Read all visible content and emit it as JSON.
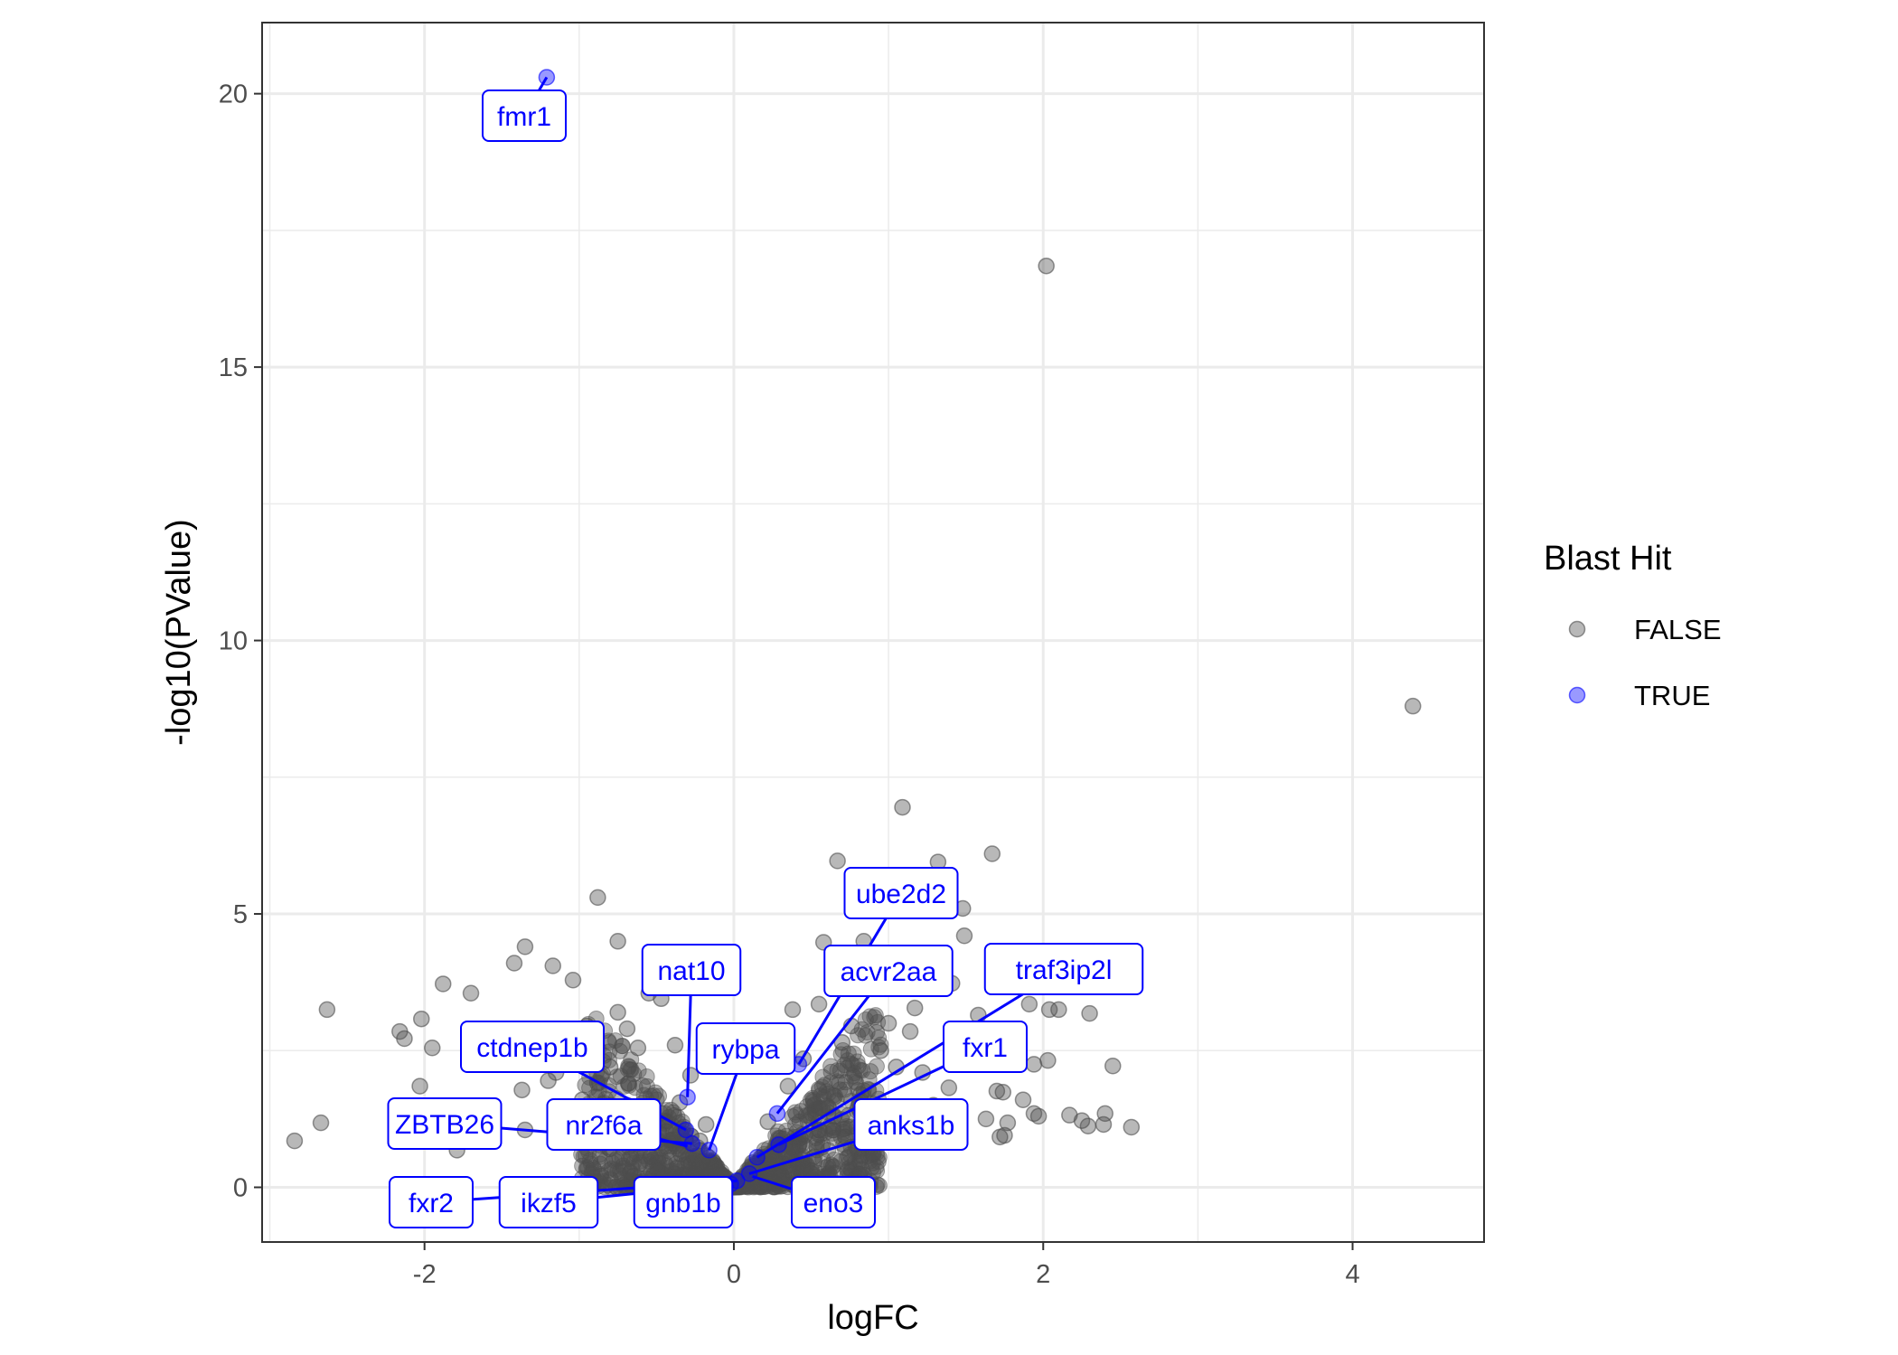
{
  "chart_data": {
    "type": "scatter",
    "xlabel": "logFC",
    "ylabel": "-log10(PValue)",
    "xlim": [
      -3.05,
      4.85
    ],
    "ylim": [
      -1.0,
      21.3
    ],
    "x_ticks": [
      -2,
      0,
      2,
      4
    ],
    "x_tick_labels": [
      "-2",
      "0",
      "2",
      "4"
    ],
    "y_ticks": [
      0,
      5,
      10,
      15,
      20
    ],
    "y_tick_labels": [
      "0",
      "5",
      "10",
      "15",
      "20"
    ],
    "grid": true,
    "legend": {
      "title": "Blast Hit",
      "placement": "right",
      "entries": [
        {
          "label": "FALSE",
          "color": "#4d4d4d"
        },
        {
          "label": "TRUE",
          "color": "#0000ff"
        }
      ]
    },
    "series": [
      {
        "name": "FALSE",
        "color": "#4d4d4d",
        "points": [
          [
            2.02,
            16.85
          ],
          [
            4.39,
            8.8
          ],
          [
            1.09,
            6.95
          ],
          [
            1.67,
            6.1
          ],
          [
            0.67,
            5.97
          ],
          [
            1.32,
            5.95
          ],
          [
            1.48,
            5.1
          ],
          [
            1.49,
            4.6
          ],
          [
            1.41,
            3.73
          ],
          [
            1.58,
            3.15
          ],
          [
            -0.88,
            5.3
          ],
          [
            -0.75,
            4.5
          ],
          [
            -1.35,
            4.4
          ],
          [
            -1.42,
            4.1
          ],
          [
            -1.17,
            4.05
          ],
          [
            -1.04,
            3.79
          ],
          [
            -1.88,
            3.72
          ],
          [
            -1.7,
            3.55
          ],
          [
            -2.63,
            3.25
          ],
          [
            -2.16,
            2.85
          ],
          [
            -2.13,
            2.72
          ],
          [
            -2.02,
            3.08
          ],
          [
            -1.95,
            2.55
          ],
          [
            -2.03,
            1.85
          ],
          [
            -1.37,
            1.78
          ],
          [
            -1.2,
            1.95
          ],
          [
            -2.84,
            0.85
          ],
          [
            -2.67,
            1.18
          ],
          [
            -1.79,
            0.68
          ],
          [
            1.91,
            3.35
          ],
          [
            2.04,
            3.25
          ],
          [
            2.1,
            3.25
          ],
          [
            2.3,
            3.18
          ],
          [
            2.03,
            2.32
          ],
          [
            1.94,
            2.25
          ],
          [
            2.45,
            2.22
          ],
          [
            1.7,
            1.76
          ],
          [
            1.74,
            1.74
          ],
          [
            1.87,
            1.6
          ],
          [
            1.94,
            1.35
          ],
          [
            1.97,
            1.3
          ],
          [
            2.17,
            1.32
          ],
          [
            2.25,
            1.22
          ],
          [
            2.4,
            1.35
          ],
          [
            2.39,
            1.15
          ],
          [
            2.29,
            1.12
          ],
          [
            2.57,
            1.1
          ],
          [
            1.77,
            1.18
          ],
          [
            1.72,
            0.92
          ],
          [
            1.75,
            0.95
          ],
          [
            1.63,
            1.25
          ],
          [
            0.58,
            4.48
          ],
          [
            0.84,
            4.5
          ],
          [
            0.64,
            3.99
          ],
          [
            0.88,
            3.9
          ],
          [
            0.76,
            2.95
          ],
          [
            0.55,
            3.35
          ],
          [
            1.17,
            3.28
          ],
          [
            1.14,
            2.85
          ],
          [
            1.22,
            2.1
          ],
          [
            1.39,
            1.82
          ],
          [
            1.29,
            1.5
          ],
          [
            0.38,
            3.25
          ],
          [
            -0.55,
            3.55
          ],
          [
            -0.47,
            3.45
          ],
          [
            -0.75,
            3.2
          ],
          [
            -0.95,
            2.95
          ],
          [
            -0.69,
            2.9
          ],
          [
            -0.38,
            2.6
          ],
          [
            -1.28,
            2.3
          ],
          [
            -1.15,
            2.1
          ],
          [
            -0.68,
            1.9
          ],
          [
            -0.52,
            1.4
          ],
          [
            -1.35,
            1.05
          ],
          [
            -1.05,
            1.25
          ],
          [
            -0.84,
            0.95
          ],
          [
            -0.44,
            0.75
          ],
          [
            -0.18,
            1.15
          ],
          [
            0.95,
            2.5
          ],
          [
            1.05,
            2.2
          ],
          [
            0.82,
            1.7
          ],
          [
            0.65,
            1.3
          ],
          [
            1.25,
            0.95
          ],
          [
            0.9,
            0.6
          ],
          [
            0.35,
            1.85
          ],
          [
            0.45,
            2.35
          ],
          [
            0.3,
            0.9
          ],
          [
            0.12,
            0.45
          ],
          [
            -0.12,
            0.4
          ],
          [
            0.05,
            0.15
          ],
          [
            -0.28,
            2.05
          ],
          [
            -0.62,
            2.55
          ],
          [
            -0.8,
            2.2
          ],
          [
            1.0,
            3.0
          ],
          [
            -0.98,
            1.6
          ],
          [
            0.7,
            2.65
          ],
          [
            0.22,
            1.2
          ],
          [
            -0.35,
            1.55
          ],
          [
            -0.22,
            0.85
          ],
          [
            0.55,
            1.05
          ]
        ]
      },
      {
        "name": "TRUE",
        "color": "#0000ff",
        "points": [
          [
            -1.21,
            20.3
          ],
          [
            0.42,
            2.25
          ],
          [
            0.28,
            1.35
          ],
          [
            0.29,
            0.78
          ],
          [
            0.15,
            0.55
          ],
          [
            0.1,
            0.25
          ],
          [
            0.02,
            0.12
          ],
          [
            -0.3,
            1.65
          ],
          [
            -0.31,
            1.05
          ],
          [
            -0.16,
            0.68
          ],
          [
            -0.27,
            0.8
          ],
          [
            -0.02,
            0.06
          ]
        ]
      }
    ],
    "annotations": [
      {
        "text": "fmr1",
        "x": -1.21,
        "y": 20.3
      },
      {
        "text": "ube2d2",
        "x": 0.42,
        "y": 2.25
      },
      {
        "text": "nat10",
        "x": -0.3,
        "y": 1.65
      },
      {
        "text": "acvr2aa",
        "x": 0.28,
        "y": 1.35
      },
      {
        "text": "traf3ip2l",
        "x": 0.15,
        "y": 0.55
      },
      {
        "text": "ctdnep1b",
        "x": -0.31,
        "y": 1.05
      },
      {
        "text": "rybpa",
        "x": -0.16,
        "y": 0.68
      },
      {
        "text": "fxr1",
        "x": 0.29,
        "y": 0.78
      },
      {
        "text": "ZBTB26",
        "x": -0.27,
        "y": 0.8
      },
      {
        "text": "nr2f6a",
        "x": -0.3,
        "y": 0.75
      },
      {
        "text": "anks1b",
        "x": 0.1,
        "y": 0.25
      },
      {
        "text": "fxr2",
        "x": 0.02,
        "y": 0.12
      },
      {
        "text": "ikzf5",
        "x": -0.02,
        "y": 0.06
      },
      {
        "text": "gnb1b",
        "x": 0.0,
        "y": 0.02
      },
      {
        "text": "eno3",
        "x": 0.12,
        "y": 0.2
      }
    ]
  }
}
